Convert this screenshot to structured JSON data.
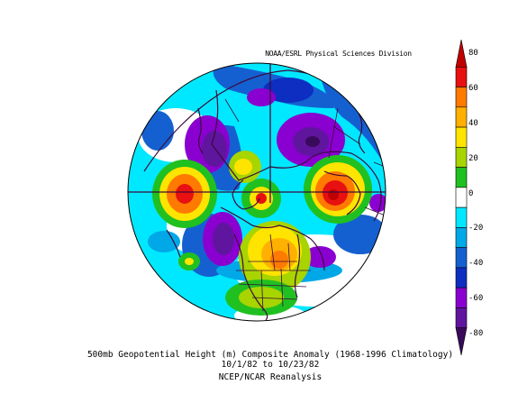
{
  "credit": "NOAA/ESRL Physical Sciences Division",
  "caption": {
    "line1": "500mb Geopotential Height (m) Composite Anomaly (1968-1996 Climatology)",
    "line2": "10/1/82  to 10/23/82",
    "line3": "NCEP/NCAR Reanalysis"
  },
  "colorbar": {
    "ticks": [
      "80",
      "60",
      "40",
      "20",
      "0",
      "-20",
      "-40",
      "-60",
      "-80"
    ],
    "colors": [
      "#c00000",
      "#e81010",
      "#ff7a00",
      "#ffb000",
      "#ffe400",
      "#a8d400",
      "#20c020",
      "#ffffff",
      "#00e8ff",
      "#00a8e8",
      "#1560d0",
      "#0d2ec0",
      "#8a00d0",
      "#60159e",
      "#3a0a5a"
    ]
  },
  "map": {
    "projection": "north polar stereographic",
    "features": [
      {
        "name": "north-atlantic-positive-anomaly",
        "color": "#e81010"
      },
      {
        "name": "arctic-ocean-positive-anomaly",
        "color": "#e81010"
      },
      {
        "name": "north-america-positive-anomaly",
        "color": "#ff7a00"
      },
      {
        "name": "siberia-negative-anomaly",
        "color": "#60159e"
      },
      {
        "name": "north-pacific-negative-anomaly",
        "color": "#60159e"
      },
      {
        "name": "greenland-negative-anomaly",
        "color": "#60159e"
      }
    ]
  }
}
